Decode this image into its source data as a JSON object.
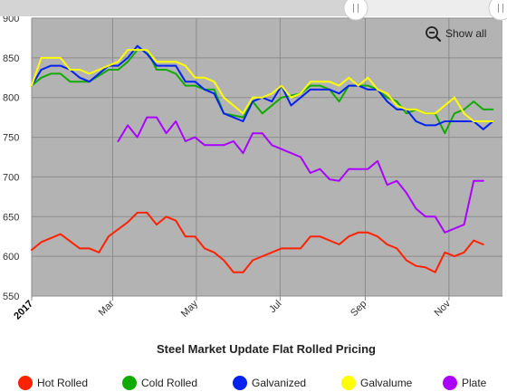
{
  "chart_data": {
    "type": "line",
    "title": "Steel Market Update Flat Rolled Pricing",
    "xlabel": "",
    "ylabel": "",
    "ylim": [
      550,
      900
    ],
    "yticks": [
      550,
      600,
      650,
      700,
      750,
      800,
      850,
      900
    ],
    "xlim": [
      "2017-01-01",
      "2017-12-10"
    ],
    "xticks": [
      {
        "date": "2017-01-01",
        "label": "2017",
        "bold": true
      },
      {
        "date": "2017-03-01",
        "label": "Mar",
        "bold": false
      },
      {
        "date": "2017-05-01",
        "label": "May",
        "bold": false
      },
      {
        "date": "2017-07-01",
        "label": "Jul",
        "bold": false
      },
      {
        "date": "2017-09-01",
        "label": "Sep",
        "bold": false
      },
      {
        "date": "2017-11-01",
        "label": "Nov",
        "bold": false
      }
    ],
    "grid": true,
    "legend_position": "bottom",
    "series": [
      {
        "name": "Hot Rolled",
        "color": "#ff2200",
        "points": [
          [
            "2017-01-01",
            608
          ],
          [
            "2017-01-08",
            618
          ],
          [
            "2017-01-22",
            628
          ],
          [
            "2017-02-05",
            610
          ],
          [
            "2017-02-12",
            610
          ],
          [
            "2017-02-19",
            605
          ],
          [
            "2017-02-26",
            625
          ],
          [
            "2017-03-12",
            643
          ],
          [
            "2017-03-19",
            655
          ],
          [
            "2017-03-26",
            655
          ],
          [
            "2017-04-02",
            640
          ],
          [
            "2017-04-09",
            650
          ],
          [
            "2017-04-16",
            645
          ],
          [
            "2017-04-23",
            625
          ],
          [
            "2017-04-30",
            625
          ],
          [
            "2017-05-07",
            610
          ],
          [
            "2017-05-14",
            605
          ],
          [
            "2017-05-21",
            595
          ],
          [
            "2017-05-28",
            580
          ],
          [
            "2017-06-04",
            580
          ],
          [
            "2017-06-11",
            595
          ],
          [
            "2017-06-25",
            605
          ],
          [
            "2017-07-02",
            610
          ],
          [
            "2017-07-16",
            610
          ],
          [
            "2017-07-23",
            625
          ],
          [
            "2017-07-30",
            625
          ],
          [
            "2017-08-13",
            615
          ],
          [
            "2017-08-20",
            625
          ],
          [
            "2017-08-27",
            630
          ],
          [
            "2017-09-03",
            630
          ],
          [
            "2017-09-10",
            625
          ],
          [
            "2017-09-17",
            615
          ],
          [
            "2017-09-24",
            610
          ],
          [
            "2017-10-01",
            595
          ],
          [
            "2017-10-08",
            588
          ],
          [
            "2017-10-15",
            586
          ],
          [
            "2017-10-22",
            580
          ],
          [
            "2017-10-29",
            605
          ],
          [
            "2017-11-05",
            600
          ],
          [
            "2017-11-12",
            605
          ],
          [
            "2017-11-19",
            620
          ],
          [
            "2017-11-26",
            615
          ]
        ]
      },
      {
        "name": "Cold Rolled",
        "color": "#11aa00",
        "points": [
          [
            "2017-01-01",
            815
          ],
          [
            "2017-01-08",
            825
          ],
          [
            "2017-01-15",
            830
          ],
          [
            "2017-01-22",
            830
          ],
          [
            "2017-01-29",
            820
          ],
          [
            "2017-02-05",
            820
          ],
          [
            "2017-02-12",
            820
          ],
          [
            "2017-02-26",
            835
          ],
          [
            "2017-03-05",
            835
          ],
          [
            "2017-03-12",
            845
          ],
          [
            "2017-03-19",
            860
          ],
          [
            "2017-03-26",
            860
          ],
          [
            "2017-04-02",
            835
          ],
          [
            "2017-04-09",
            835
          ],
          [
            "2017-04-16",
            830
          ],
          [
            "2017-04-23",
            815
          ],
          [
            "2017-04-30",
            815
          ],
          [
            "2017-05-07",
            810
          ],
          [
            "2017-05-14",
            810
          ],
          [
            "2017-05-21",
            780
          ],
          [
            "2017-06-04",
            775
          ],
          [
            "2017-06-11",
            795
          ],
          [
            "2017-06-18",
            780
          ],
          [
            "2017-07-02",
            800
          ],
          [
            "2017-07-16",
            805
          ],
          [
            "2017-07-23",
            815
          ],
          [
            "2017-07-30",
            815
          ],
          [
            "2017-08-06",
            810
          ],
          [
            "2017-08-13",
            795
          ],
          [
            "2017-08-20",
            815
          ],
          [
            "2017-09-03",
            815
          ],
          [
            "2017-09-10",
            810
          ],
          [
            "2017-09-17",
            800
          ],
          [
            "2017-09-24",
            795
          ],
          [
            "2017-10-01",
            780
          ],
          [
            "2017-10-08",
            785
          ],
          [
            "2017-10-15",
            780
          ],
          [
            "2017-10-22",
            780
          ],
          [
            "2017-10-29",
            755
          ],
          [
            "2017-11-05",
            780
          ],
          [
            "2017-11-12",
            785
          ],
          [
            "2017-11-19",
            795
          ],
          [
            "2017-11-26",
            785
          ],
          [
            "2017-12-03",
            785
          ]
        ]
      },
      {
        "name": "Galvanized",
        "color": "#0022ee",
        "points": [
          [
            "2017-01-01",
            815
          ],
          [
            "2017-01-08",
            835
          ],
          [
            "2017-01-15",
            840
          ],
          [
            "2017-01-22",
            840
          ],
          [
            "2017-01-29",
            835
          ],
          [
            "2017-02-05",
            825
          ],
          [
            "2017-02-12",
            820
          ],
          [
            "2017-02-19",
            830
          ],
          [
            "2017-02-26",
            840
          ],
          [
            "2017-03-05",
            840
          ],
          [
            "2017-03-12",
            850
          ],
          [
            "2017-03-19",
            865
          ],
          [
            "2017-03-26",
            855
          ],
          [
            "2017-04-02",
            840
          ],
          [
            "2017-04-09",
            840
          ],
          [
            "2017-04-16",
            840
          ],
          [
            "2017-04-23",
            820
          ],
          [
            "2017-04-30",
            820
          ],
          [
            "2017-05-07",
            810
          ],
          [
            "2017-05-14",
            805
          ],
          [
            "2017-05-21",
            780
          ],
          [
            "2017-06-04",
            770
          ],
          [
            "2017-06-11",
            795
          ],
          [
            "2017-06-18",
            800
          ],
          [
            "2017-06-25",
            795
          ],
          [
            "2017-07-02",
            815
          ],
          [
            "2017-07-09",
            790
          ],
          [
            "2017-07-16",
            800
          ],
          [
            "2017-07-23",
            810
          ],
          [
            "2017-07-30",
            810
          ],
          [
            "2017-08-06",
            810
          ],
          [
            "2017-08-13",
            805
          ],
          [
            "2017-08-20",
            815
          ],
          [
            "2017-08-27",
            815
          ],
          [
            "2017-09-03",
            810
          ],
          [
            "2017-09-10",
            810
          ],
          [
            "2017-09-17",
            795
          ],
          [
            "2017-09-24",
            785
          ],
          [
            "2017-10-01",
            785
          ],
          [
            "2017-10-08",
            770
          ],
          [
            "2017-10-15",
            765
          ],
          [
            "2017-10-22",
            765
          ],
          [
            "2017-10-29",
            770
          ],
          [
            "2017-11-12",
            770
          ],
          [
            "2017-11-19",
            770
          ],
          [
            "2017-11-26",
            760
          ],
          [
            "2017-12-03",
            770
          ]
        ]
      },
      {
        "name": "Galvalume",
        "color": "#ffff00",
        "points": [
          [
            "2017-01-01",
            815
          ],
          [
            "2017-01-08",
            850
          ],
          [
            "2017-01-15",
            850
          ],
          [
            "2017-01-22",
            850
          ],
          [
            "2017-01-29",
            835
          ],
          [
            "2017-02-05",
            835
          ],
          [
            "2017-02-12",
            830
          ],
          [
            "2017-02-19",
            835
          ],
          [
            "2017-02-26",
            840
          ],
          [
            "2017-03-05",
            845
          ],
          [
            "2017-03-12",
            860
          ],
          [
            "2017-03-19",
            860
          ],
          [
            "2017-03-26",
            860
          ],
          [
            "2017-04-02",
            845
          ],
          [
            "2017-04-09",
            845
          ],
          [
            "2017-04-16",
            845
          ],
          [
            "2017-04-23",
            840
          ],
          [
            "2017-04-30",
            825
          ],
          [
            "2017-05-07",
            825
          ],
          [
            "2017-05-14",
            820
          ],
          [
            "2017-05-21",
            800
          ],
          [
            "2017-06-04",
            780
          ],
          [
            "2017-06-11",
            800
          ],
          [
            "2017-06-18",
            800
          ],
          [
            "2017-06-25",
            805
          ],
          [
            "2017-07-02",
            815
          ],
          [
            "2017-07-09",
            800
          ],
          [
            "2017-07-16",
            805
          ],
          [
            "2017-07-23",
            820
          ],
          [
            "2017-07-30",
            820
          ],
          [
            "2017-08-06",
            820
          ],
          [
            "2017-08-13",
            815
          ],
          [
            "2017-08-20",
            825
          ],
          [
            "2017-08-27",
            815
          ],
          [
            "2017-09-03",
            825
          ],
          [
            "2017-09-10",
            810
          ],
          [
            "2017-09-17",
            805
          ],
          [
            "2017-09-24",
            790
          ],
          [
            "2017-10-01",
            785
          ],
          [
            "2017-10-08",
            785
          ],
          [
            "2017-10-15",
            780
          ],
          [
            "2017-10-22",
            780
          ],
          [
            "2017-10-29",
            790
          ],
          [
            "2017-11-05",
            800
          ],
          [
            "2017-11-12",
            780
          ],
          [
            "2017-11-19",
            770
          ],
          [
            "2017-11-26",
            770
          ],
          [
            "2017-12-03",
            770
          ]
        ]
      },
      {
        "name": "Plate",
        "color": "#aa00ff",
        "points": [
          [
            "2017-03-05",
            745
          ],
          [
            "2017-03-12",
            765
          ],
          [
            "2017-03-19",
            750
          ],
          [
            "2017-03-26",
            775
          ],
          [
            "2017-04-02",
            775
          ],
          [
            "2017-04-09",
            755
          ],
          [
            "2017-04-16",
            770
          ],
          [
            "2017-04-23",
            745
          ],
          [
            "2017-04-30",
            750
          ],
          [
            "2017-05-07",
            740
          ],
          [
            "2017-05-14",
            740
          ],
          [
            "2017-05-21",
            740
          ],
          [
            "2017-05-28",
            745
          ],
          [
            "2017-06-04",
            730
          ],
          [
            "2017-06-11",
            755
          ],
          [
            "2017-06-18",
            755
          ],
          [
            "2017-06-25",
            740
          ],
          [
            "2017-07-09",
            730
          ],
          [
            "2017-07-16",
            725
          ],
          [
            "2017-07-23",
            705
          ],
          [
            "2017-07-30",
            710
          ],
          [
            "2017-08-06",
            697
          ],
          [
            "2017-08-13",
            695
          ],
          [
            "2017-08-20",
            710
          ],
          [
            "2017-09-03",
            710
          ],
          [
            "2017-09-10",
            720
          ],
          [
            "2017-09-17",
            690
          ],
          [
            "2017-09-24",
            695
          ],
          [
            "2017-10-01",
            680
          ],
          [
            "2017-10-08",
            660
          ],
          [
            "2017-10-15",
            650
          ],
          [
            "2017-10-22",
            650
          ],
          [
            "2017-10-29",
            630
          ],
          [
            "2017-11-12",
            640
          ],
          [
            "2017-11-19",
            695
          ],
          [
            "2017-11-26",
            695
          ]
        ]
      }
    ]
  },
  "controls": {
    "show_all_label": "Show all",
    "zoom_icon": "zoom-out-icon",
    "scroll_handle_icon": "grip-icon"
  },
  "colors": {
    "plot_background": "#b3b3b3",
    "grid": "#8c8c8c"
  }
}
